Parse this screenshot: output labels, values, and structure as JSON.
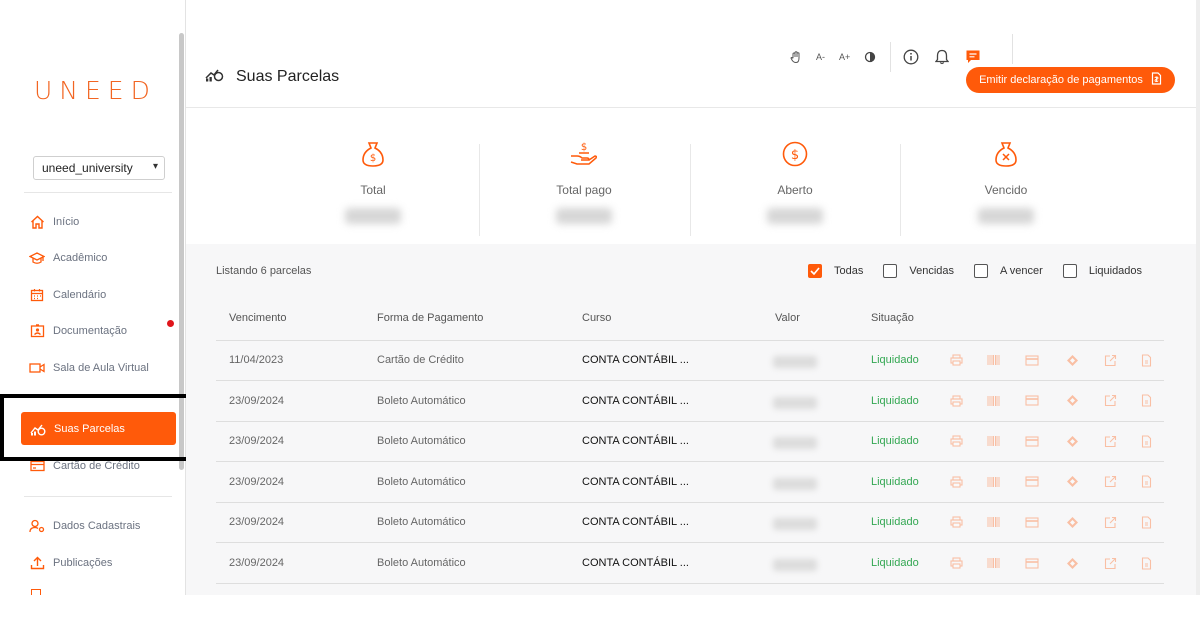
{
  "brand": {
    "logo": "UNEED",
    "accent": "#ff5a0a",
    "success": "#34a853"
  },
  "org_select": {
    "value": "uneed_university"
  },
  "sidebar": {
    "items": [
      {
        "label": "Início",
        "icon": "home-icon"
      },
      {
        "label": "Acadêmico",
        "icon": "graduation-cap-icon"
      },
      {
        "label": "Calendário",
        "icon": "calendar-icon"
      },
      {
        "label": "Documentação",
        "icon": "id-card-icon"
      },
      {
        "label": "Sala de Aula Virtual",
        "icon": "video-icon"
      },
      {
        "label": "Suas Parcelas",
        "icon": "installments-icon",
        "active": true
      },
      {
        "label": "Cartão de Crédito",
        "icon": "credit-card-icon"
      },
      {
        "label": "Dados Cadastrais",
        "icon": "user-gear-icon"
      },
      {
        "label": "Publicações",
        "icon": "upload-icon"
      }
    ]
  },
  "topbar": {
    "font_decrease": "A-",
    "font_increase": "A+"
  },
  "page": {
    "title": "Suas Parcelas",
    "emit_button": "Emitir declaração de pagamentos"
  },
  "summary": [
    {
      "label": "Total",
      "icon": "money-bag-icon"
    },
    {
      "label": "Total pago",
      "icon": "hand-money-icon"
    },
    {
      "label": "Aberto",
      "icon": "dollar-circle-icon"
    },
    {
      "label": "Vencido",
      "icon": "money-bag-x-icon"
    }
  ],
  "listing": "Listando 6 parcelas",
  "filters": [
    {
      "label": "Todas",
      "checked": true
    },
    {
      "label": "Vencidas",
      "checked": false
    },
    {
      "label": "A vencer",
      "checked": false
    },
    {
      "label": "Liquidados",
      "checked": false
    }
  ],
  "table": {
    "headers": [
      "Vencimento",
      "Forma de Pagamento",
      "Curso",
      "Valor",
      "Situação"
    ],
    "rows": [
      {
        "vencimento": "11/04/2023",
        "forma": "Cartão de Crédito",
        "curso": "CONTA CONTÁBIL ...",
        "situacao": "Liquidado"
      },
      {
        "vencimento": "23/09/2024",
        "forma": "Boleto Automático",
        "curso": "CONTA CONTÁBIL ...",
        "situacao": "Liquidado"
      },
      {
        "vencimento": "23/09/2024",
        "forma": "Boleto Automático",
        "curso": "CONTA CONTÁBIL ...",
        "situacao": "Liquidado"
      },
      {
        "vencimento": "23/09/2024",
        "forma": "Boleto Automático",
        "curso": "CONTA CONTÁBIL ...",
        "situacao": "Liquidado"
      },
      {
        "vencimento": "23/09/2024",
        "forma": "Boleto Automático",
        "curso": "CONTA CONTÁBIL ...",
        "situacao": "Liquidado"
      },
      {
        "vencimento": "23/09/2024",
        "forma": "Boleto Automático",
        "curso": "CONTA CONTÁBIL ...",
        "situacao": "Liquidado"
      }
    ],
    "actions": [
      "printer-icon",
      "barcode-icon",
      "card-icon",
      "pix-icon",
      "external-link-icon",
      "document-icon"
    ]
  }
}
